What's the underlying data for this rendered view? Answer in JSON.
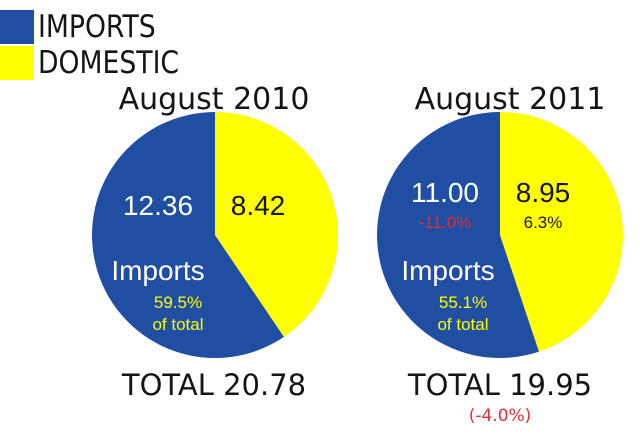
{
  "legend": [
    {
      "label": "IMPORTS",
      "color": "#1f4ea3"
    },
    {
      "label": "DOMESTIC",
      "color": "#ffff00"
    }
  ],
  "colors": {
    "imports": "#1f4ea3",
    "domestic": "#ffff00",
    "negative": "#e0303a",
    "share_text": "#ffff00",
    "value_white": "#ffffff",
    "value_dark": "#151515"
  },
  "chart_data": [
    {
      "type": "pie",
      "title": "August 2010",
      "slices": [
        {
          "name": "Imports",
          "value": 12.36,
          "value_label": "12.36",
          "share_label": "59.5%",
          "share_caption": "of total",
          "change_label": ""
        },
        {
          "name": "Domestic",
          "value": 8.42,
          "value_label": "8.42",
          "change_label": ""
        }
      ],
      "slice_label": "Imports",
      "total_label": "TOTAL 20.78",
      "total_change_label": ""
    },
    {
      "type": "pie",
      "title": "August 2011",
      "slices": [
        {
          "name": "Imports",
          "value": 11.0,
          "value_label": "11.00",
          "share_label": "55.1%",
          "share_caption": "of total",
          "change_label": "-11.0%"
        },
        {
          "name": "Domestic",
          "value": 8.95,
          "value_label": "8.95",
          "change_label": "6.3%"
        }
      ],
      "slice_label": "Imports",
      "total_label": "TOTAL 19.95",
      "total_change_label": "(-4.0%)"
    }
  ]
}
